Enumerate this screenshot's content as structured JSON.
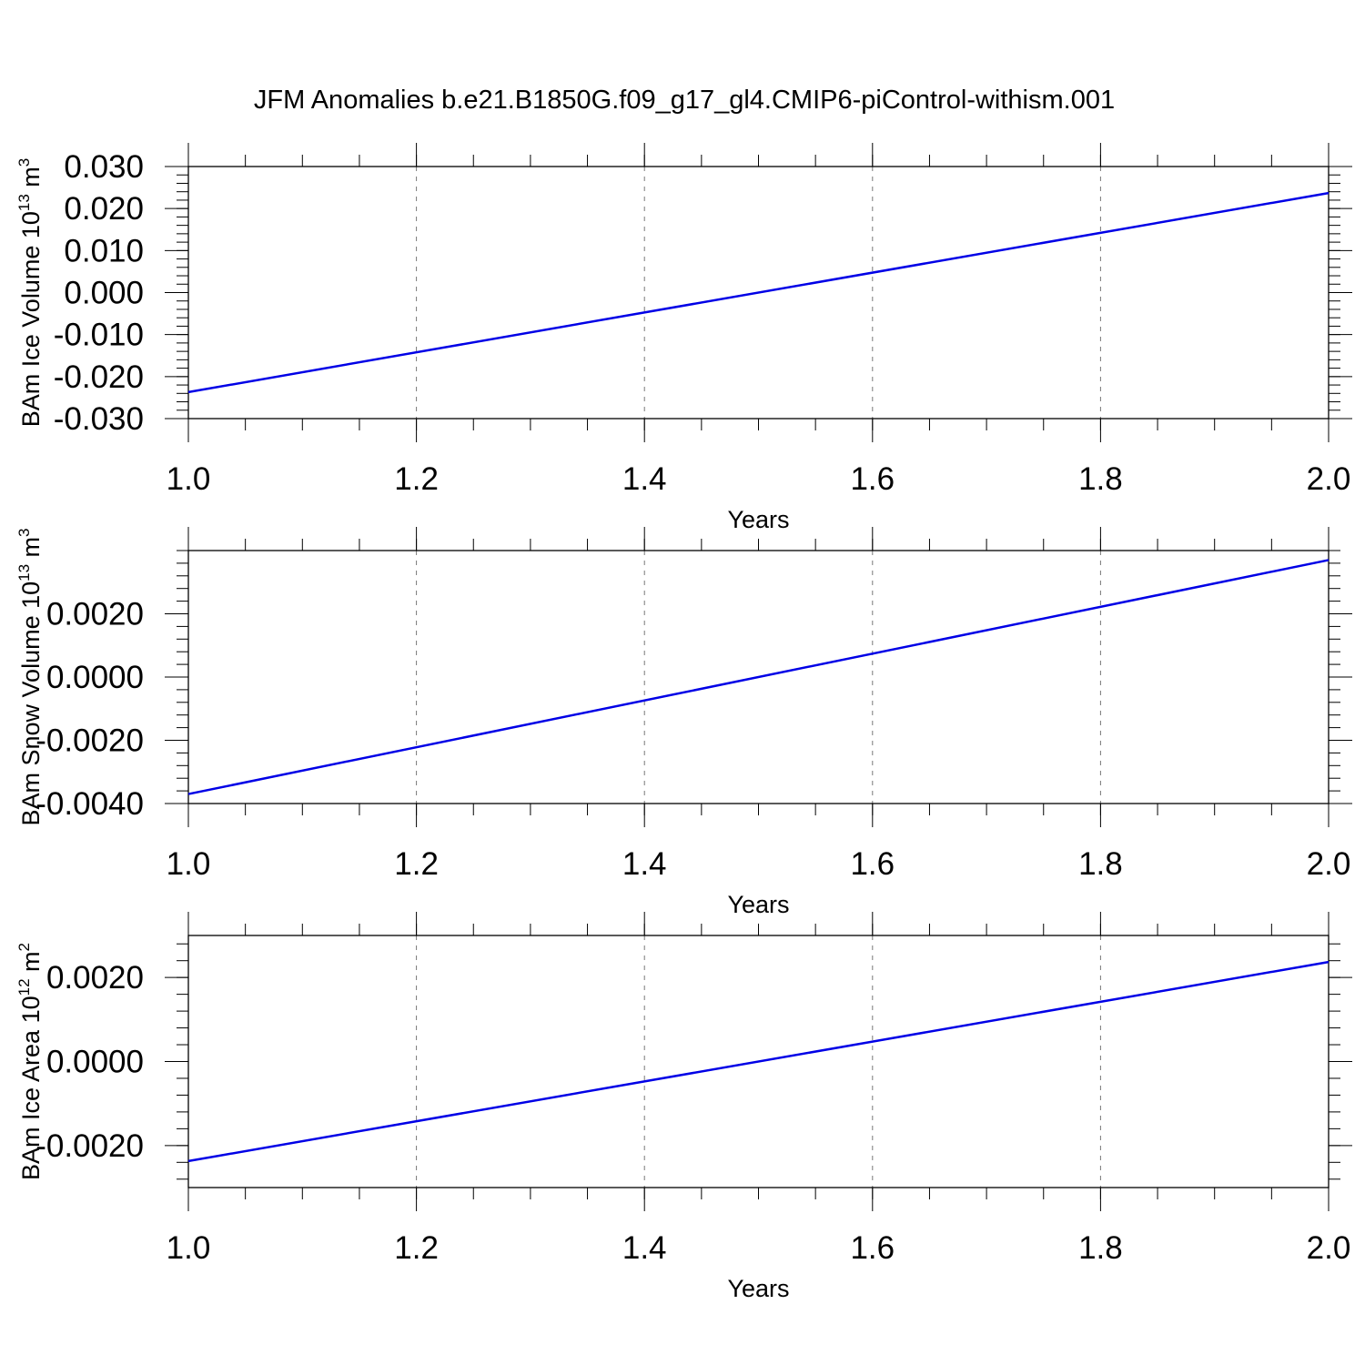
{
  "figure_title": "JFM Anomalies b.e21.B1850G.f09_g17_gl4.CMIP6-piControl-withism.001",
  "colors": {
    "series": "#0000e6",
    "axis": "#000000",
    "grid": "#777777"
  },
  "chart_data": [
    {
      "type": "line",
      "xlabel": "Years",
      "ylabel": {
        "base": "BAm Ice Volume 10",
        "exp": "13",
        "unit": " m",
        "unit_exp": "3"
      },
      "xlim": [
        1.0,
        2.0
      ],
      "ylim": [
        -0.03,
        0.03
      ],
      "x_ticks": [
        "1.0",
        "1.2",
        "1.4",
        "1.6",
        "1.8",
        "2.0"
      ],
      "y_ticks": [
        {
          "value": -0.03,
          "label": "-0.030"
        },
        {
          "value": -0.02,
          "label": "-0.020"
        },
        {
          "value": -0.01,
          "label": "-0.010"
        },
        {
          "value": 0.0,
          "label": "0.000"
        },
        {
          "value": 0.01,
          "label": "0.010"
        },
        {
          "value": 0.02,
          "label": "0.020"
        },
        {
          "value": 0.03,
          "label": "0.030"
        }
      ],
      "grid": "x-dashed",
      "series": [
        {
          "x": [
            1.0,
            2.0
          ],
          "y": [
            -0.0237,
            0.0237
          ]
        }
      ]
    },
    {
      "type": "line",
      "xlabel": "Years",
      "ylabel": {
        "base": "BAm Snow Volume 10",
        "exp": "13",
        "unit": " m",
        "unit_exp": "3"
      },
      "xlim": [
        1.0,
        2.0
      ],
      "ylim": [
        -0.004,
        0.004
      ],
      "x_ticks": [
        "1.0",
        "1.2",
        "1.4",
        "1.6",
        "1.8",
        "2.0"
      ],
      "y_ticks": [
        {
          "value": -0.004,
          "label": "-0.0040"
        },
        {
          "value": -0.002,
          "label": "-0.0020"
        },
        {
          "value": 0.0,
          "label": "0.0000"
        },
        {
          "value": 0.002,
          "label": "0.0020"
        }
      ],
      "grid": "x-dashed",
      "series": [
        {
          "x": [
            1.0,
            2.0
          ],
          "y": [
            -0.0037,
            0.0037
          ]
        }
      ]
    },
    {
      "type": "line",
      "xlabel": "Years",
      "ylabel": {
        "base": "BAm Ice Area 10",
        "exp": "12",
        "unit": " m",
        "unit_exp": "2"
      },
      "xlim": [
        1.0,
        2.0
      ],
      "ylim": [
        -0.003,
        0.003
      ],
      "x_ticks": [
        "1.0",
        "1.2",
        "1.4",
        "1.6",
        "1.8",
        "2.0"
      ],
      "y_ticks": [
        {
          "value": -0.002,
          "label": "-0.0020"
        },
        {
          "value": 0.0,
          "label": "0.0000"
        },
        {
          "value": 0.002,
          "label": "0.0020"
        }
      ],
      "grid": "x-dashed",
      "series": [
        {
          "x": [
            1.0,
            2.0
          ],
          "y": [
            -0.00237,
            0.00237
          ]
        }
      ]
    }
  ]
}
